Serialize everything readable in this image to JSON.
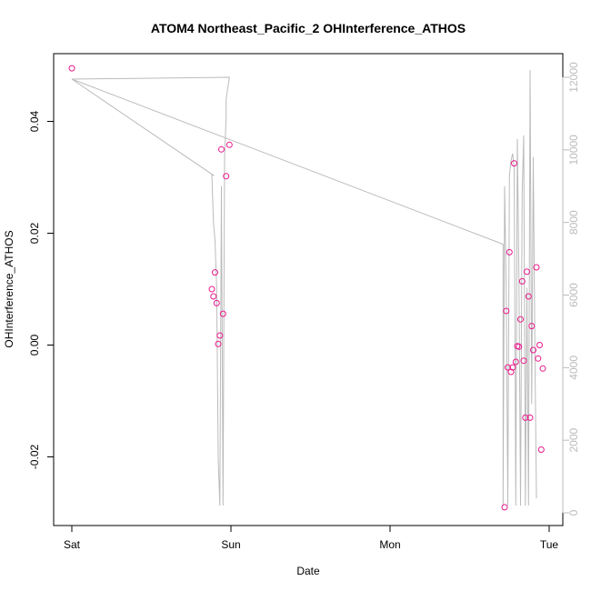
{
  "chart_data": {
    "type": "scatter",
    "title": "ATOM4 Northeast_Pacific_2 OHInterference_ATHOS",
    "xlabel": "Date",
    "ylabel": "OHInterference_ATHOS",
    "x_ticks": [
      {
        "label": "Sat",
        "day": 0
      },
      {
        "label": "Sun",
        "day": 1
      },
      {
        "label": "Mon",
        "day": 2
      },
      {
        "label": "Tue",
        "day": 3
      }
    ],
    "xlim": [
      0,
      3.06
    ],
    "ylim": [
      -0.03,
      0.05
    ],
    "y_ticks": [
      -0.02,
      0.0,
      0.02,
      0.04
    ],
    "y_tick_labels": [
      "-0.02",
      "0.00",
      "0.02",
      "0.04"
    ],
    "y2lim": [
      -50,
      12500
    ],
    "y2_ticks": [
      0,
      2000,
      4000,
      6000,
      8000,
      10000,
      12000
    ],
    "y2_tick_labels": [
      "0",
      "2000",
      "4000",
      "6000",
      "8000",
      "10000",
      "12000"
    ],
    "grid": false,
    "colors": {
      "points": "#e8198b",
      "line": "#bbbbbb",
      "axis": "#000000"
    },
    "series": [
      {
        "kind": "points",
        "points": [
          {
            "day": 0.0,
            "y": 0.0495
          },
          {
            "day": 0.88,
            "y": 0.01
          },
          {
            "day": 0.89,
            "y": 0.0087
          },
          {
            "day": 0.9,
            "y": 0.013
          },
          {
            "day": 0.91,
            "y": 0.0075
          },
          {
            "day": 0.92,
            "y": 0.0002
          },
          {
            "day": 0.93,
            "y": 0.0017
          },
          {
            "day": 0.94,
            "y": 0.035
          },
          {
            "day": 0.95,
            "y": 0.0056
          },
          {
            "day": 0.97,
            "y": 0.0302
          },
          {
            "day": 0.99,
            "y": 0.0358
          },
          {
            "day": 2.72,
            "y": -0.029
          },
          {
            "day": 2.73,
            "y": 0.0061
          },
          {
            "day": 2.74,
            "y": -0.004
          },
          {
            "day": 2.75,
            "y": 0.0166
          },
          {
            "day": 2.76,
            "y": -0.0048
          },
          {
            "day": 2.77,
            "y": -0.004
          },
          {
            "day": 2.78,
            "y": 0.0325
          },
          {
            "day": 2.79,
            "y": -0.003
          },
          {
            "day": 2.8,
            "y": -0.0002
          },
          {
            "day": 2.81,
            "y": -0.0003
          },
          {
            "day": 2.82,
            "y": 0.0046
          },
          {
            "day": 2.83,
            "y": 0.0114
          },
          {
            "day": 2.84,
            "y": -0.0028
          },
          {
            "day": 2.85,
            "y": -0.013
          },
          {
            "day": 2.86,
            "y": 0.0131
          },
          {
            "day": 2.87,
            "y": 0.0087
          },
          {
            "day": 2.88,
            "y": -0.013
          },
          {
            "day": 2.89,
            "y": 0.0034
          },
          {
            "day": 2.9,
            "y": -0.0009
          },
          {
            "day": 2.92,
            "y": 0.0139
          },
          {
            "day": 2.93,
            "y": -0.0024
          },
          {
            "day": 2.94,
            "y": 0.0
          },
          {
            "day": 2.95,
            "y": -0.0187
          },
          {
            "day": 2.96,
            "y": -0.0042
          }
        ]
      },
      {
        "kind": "line",
        "axis": "right",
        "points": [
          {
            "day": 0.0,
            "y": 11950
          },
          {
            "day": 0.99,
            "y": 12000
          },
          {
            "day": 0.97,
            "y": 11400
          },
          {
            "day": 0.97,
            "y": 10900
          },
          {
            "day": 0.96,
            "y": 9800
          },
          {
            "day": 0.95,
            "y": 200
          },
          {
            "day": 0.94,
            "y": 9000
          },
          {
            "day": 0.93,
            "y": 200
          },
          {
            "day": 0.92,
            "y": 1500
          },
          {
            "day": 0.91,
            "y": 6200
          },
          {
            "day": 0.9,
            "y": 7500
          },
          {
            "day": 0.89,
            "y": 8000
          },
          {
            "day": 0.88,
            "y": 9300
          },
          {
            "day": 0.89,
            "y": 9300
          },
          {
            "day": 0.0,
            "y": 11950
          },
          {
            "day": 2.71,
            "y": 7400
          },
          {
            "day": 2.71,
            "y": 200
          },
          {
            "day": 2.72,
            "y": 9000
          },
          {
            "day": 2.73,
            "y": 6000
          },
          {
            "day": 2.74,
            "y": 200
          },
          {
            "day": 2.75,
            "y": 9300
          },
          {
            "day": 2.76,
            "y": 9700
          },
          {
            "day": 2.77,
            "y": 9900
          },
          {
            "day": 2.78,
            "y": 9500
          },
          {
            "day": 2.79,
            "y": 200
          },
          {
            "day": 2.8,
            "y": 10300
          },
          {
            "day": 2.81,
            "y": 6300
          },
          {
            "day": 2.82,
            "y": 200
          },
          {
            "day": 2.83,
            "y": 8800
          },
          {
            "day": 2.84,
            "y": 10400
          },
          {
            "day": 2.85,
            "y": 200
          },
          {
            "day": 2.86,
            "y": 6200
          },
          {
            "day": 2.87,
            "y": 200
          },
          {
            "day": 2.88,
            "y": 12200
          },
          {
            "day": 2.89,
            "y": 3000
          },
          {
            "day": 2.9,
            "y": 9800
          },
          {
            "day": 2.91,
            "y": 4500
          },
          {
            "day": 2.92,
            "y": 400
          }
        ]
      }
    ]
  }
}
